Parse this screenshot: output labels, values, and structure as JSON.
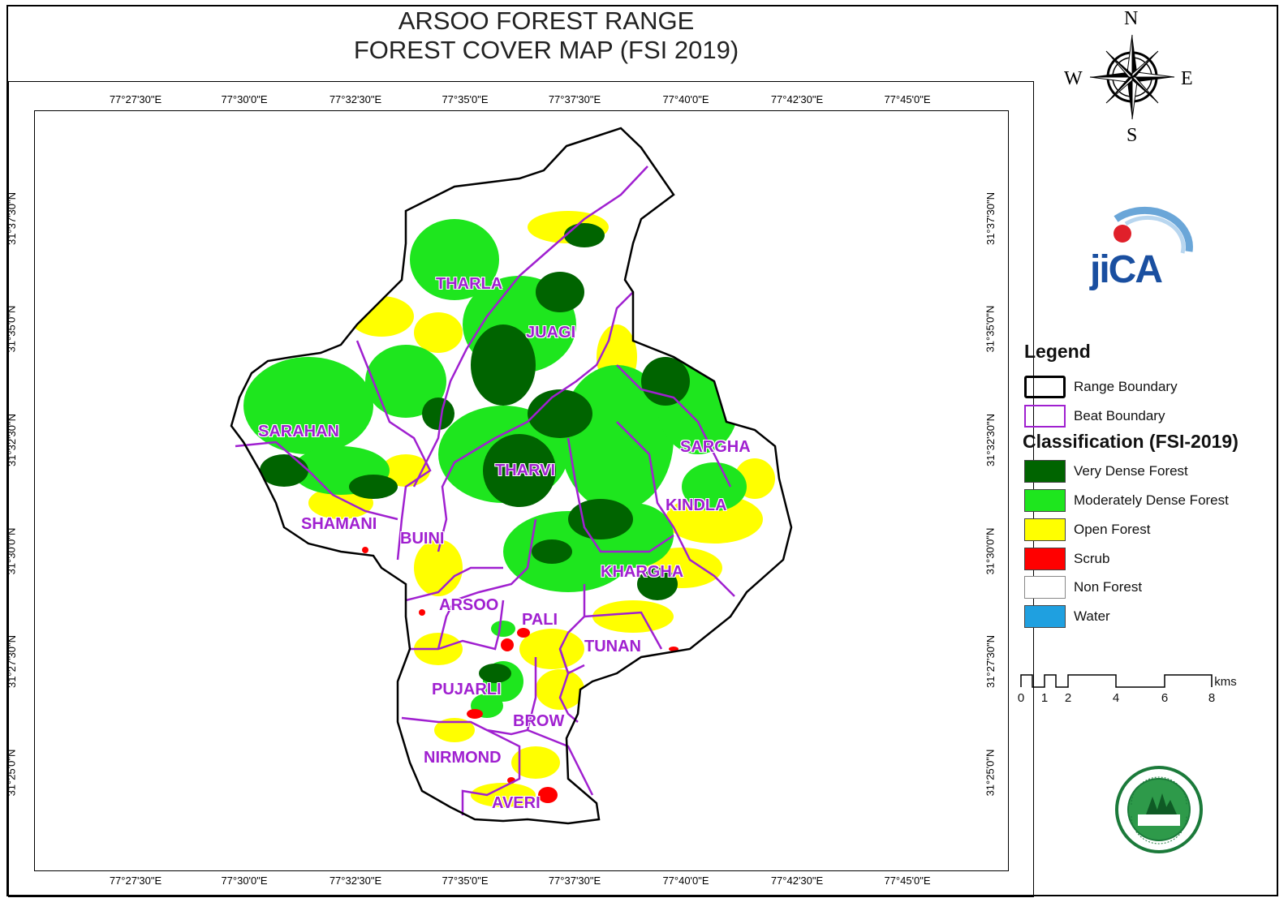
{
  "title": {
    "line1": "ARSOO FOREST RANGE",
    "line2": "FOREST COVER MAP (FSI 2019)"
  },
  "longitude_ticks": [
    "77°27'30\"E",
    "77°30'0\"E",
    "77°32'30\"E",
    "77°35'0\"E",
    "77°37'30\"E",
    "77°40'0\"E",
    "77°42'30\"E",
    "77°45'0\"E"
  ],
  "latitude_ticks": [
    "31°37'30\"N",
    "31°35'0\"N",
    "31°32'30\"N",
    "31°30'0\"N",
    "31°27'30\"N",
    "31°25'0\"N"
  ],
  "compass": {
    "n": "N",
    "s": "S",
    "e": "E",
    "w": "W"
  },
  "logos": {
    "jica_text": "JICA",
    "dept_seal": "seal"
  },
  "legend": {
    "title": "Legend",
    "range_boundary": "Range Boundary",
    "beat_boundary": "Beat Boundary",
    "classification_title": "Classification (FSI-2019)",
    "classes": [
      {
        "label": "Very Dense Forest",
        "color": "#006400"
      },
      {
        "label": "Moderately Dense Forest",
        "color": "#1ee61e"
      },
      {
        "label": "Open Forest",
        "color": "#ffff00"
      },
      {
        "label": "Scrub",
        "color": "#ff0000"
      },
      {
        "label": "Non Forest",
        "color": "#ffffff"
      },
      {
        "label": "Water",
        "color": "#1fa0e0"
      }
    ],
    "beat_color": "#a020d0"
  },
  "scale": {
    "labels": [
      "0",
      "1",
      "2",
      "4",
      "6",
      "8"
    ],
    "unit": "kms"
  },
  "beats": [
    "THARLA",
    "JUAGI",
    "SARAHAN",
    "SARGHA",
    "THARVI",
    "KINDLA",
    "SHAMANI",
    "BUINI",
    "KHARGHA",
    "ARSOO",
    "PALI",
    "TUNAN",
    "PUJARLI",
    "BROW",
    "NIRMOND",
    "AVERI"
  ]
}
